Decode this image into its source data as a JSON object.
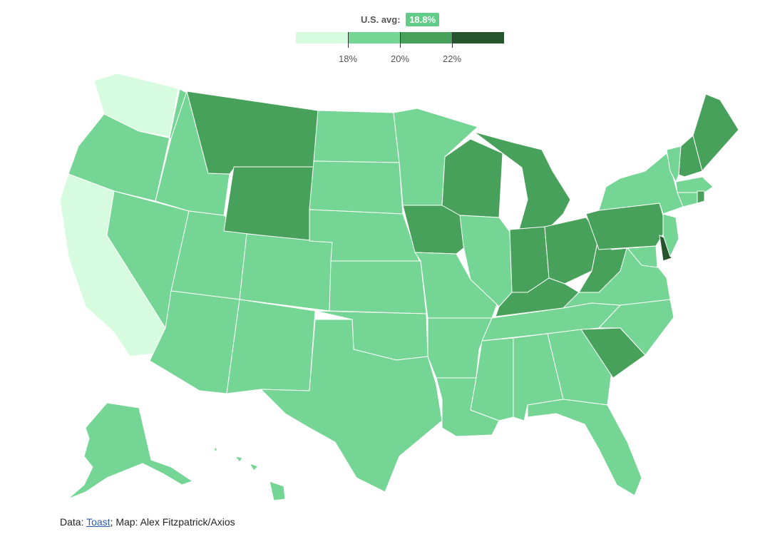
{
  "header": {
    "avg_label": "U.S. avg:",
    "avg_value": "18.8%"
  },
  "legend": {
    "bins": [
      {
        "color": "#d7fbdf"
      },
      {
        "color": "#75d595"
      },
      {
        "color": "#48a15a"
      },
      {
        "color": "#25542d"
      }
    ],
    "ticks": [
      {
        "label": "18%",
        "value": 18
      },
      {
        "label": "20%",
        "value": 20
      },
      {
        "label": "22%",
        "value": 22
      }
    ],
    "range": [
      16,
      24
    ]
  },
  "map_data": {
    "states": [
      {
        "id": "WA",
        "level": 0
      },
      {
        "id": "CA",
        "level": 0
      },
      {
        "id": "OR",
        "level": 1
      },
      {
        "id": "ID",
        "level": 1
      },
      {
        "id": "NV",
        "level": 1
      },
      {
        "id": "UT",
        "level": 1
      },
      {
        "id": "AZ",
        "level": 1
      },
      {
        "id": "CO",
        "level": 1
      },
      {
        "id": "NM",
        "level": 1
      },
      {
        "id": "ND",
        "level": 1
      },
      {
        "id": "SD",
        "level": 1
      },
      {
        "id": "NE",
        "level": 1
      },
      {
        "id": "KS",
        "level": 1
      },
      {
        "id": "OK",
        "level": 1
      },
      {
        "id": "TX",
        "level": 1
      },
      {
        "id": "MN",
        "level": 1
      },
      {
        "id": "MO",
        "level": 1
      },
      {
        "id": "AR",
        "level": 1
      },
      {
        "id": "LA",
        "level": 1
      },
      {
        "id": "IL",
        "level": 1
      },
      {
        "id": "MS",
        "level": 1
      },
      {
        "id": "AL",
        "level": 1
      },
      {
        "id": "TN",
        "level": 1
      },
      {
        "id": "GA",
        "level": 1
      },
      {
        "id": "FL",
        "level": 1
      },
      {
        "id": "NC",
        "level": 1
      },
      {
        "id": "VA",
        "level": 1
      },
      {
        "id": "MD",
        "level": 1
      },
      {
        "id": "NJ",
        "level": 1
      },
      {
        "id": "NY",
        "level": 1
      },
      {
        "id": "VT",
        "level": 1
      },
      {
        "id": "MA",
        "level": 1
      },
      {
        "id": "CT",
        "level": 1
      },
      {
        "id": "AK",
        "level": 1
      },
      {
        "id": "HI",
        "level": 1
      },
      {
        "id": "MT",
        "level": 2
      },
      {
        "id": "WY",
        "level": 2
      },
      {
        "id": "IA",
        "level": 2
      },
      {
        "id": "WI",
        "level": 2
      },
      {
        "id": "MI",
        "level": 2
      },
      {
        "id": "IN",
        "level": 2
      },
      {
        "id": "OH",
        "level": 2
      },
      {
        "id": "KY",
        "level": 2
      },
      {
        "id": "WV",
        "level": 2
      },
      {
        "id": "PA",
        "level": 2
      },
      {
        "id": "SC",
        "level": 2
      },
      {
        "id": "ME",
        "level": 2
      },
      {
        "id": "NH",
        "level": 2
      },
      {
        "id": "RI",
        "level": 2
      },
      {
        "id": "DE",
        "level": 3
      }
    ]
  },
  "source": {
    "prefix": "Data: ",
    "link_text": "Toast",
    "suffix": "; Map: Alex Fitzpatrick/Axios"
  }
}
